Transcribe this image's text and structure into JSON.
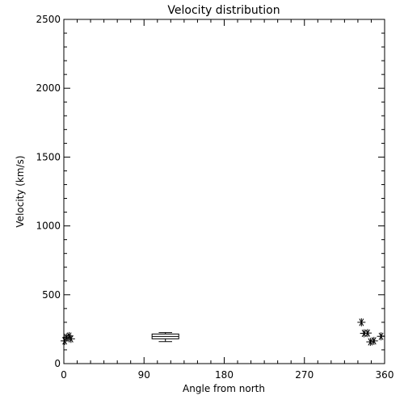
{
  "chart_data": {
    "type": "scatter",
    "title": "Velocity distribution",
    "xlabel": "Angle from north",
    "ylabel": "Velocity (km/s)",
    "xlim": [
      0,
      360
    ],
    "ylim": [
      0,
      2500
    ],
    "xticks": [
      0,
      90,
      180,
      270,
      360
    ],
    "xtick_labels": [
      "0",
      "90",
      "180",
      "270",
      "360"
    ],
    "yticks": [
      0,
      500,
      1000,
      1500,
      2000,
      2500
    ],
    "ytick_labels": [
      "0",
      "500",
      "1000",
      "1500",
      "2000",
      "2500"
    ],
    "grid": false,
    "series": [
      {
        "marker": "asterisk",
        "points": [
          {
            "x": 1,
            "y": 165
          },
          {
            "x": 3,
            "y": 190
          },
          {
            "x": 6,
            "y": 200
          },
          {
            "x": 8,
            "y": 180
          },
          {
            "x": 334,
            "y": 300
          },
          {
            "x": 337,
            "y": 220
          },
          {
            "x": 341,
            "y": 222
          },
          {
            "x": 344,
            "y": 158
          },
          {
            "x": 348,
            "y": 165
          },
          {
            "x": 356,
            "y": 198
          }
        ]
      }
    ],
    "boxplot": {
      "x": 114,
      "x_halfwidth": 15,
      "min": 160,
      "q1": 180,
      "median": 197,
      "q3": 215,
      "max": 225
    }
  }
}
